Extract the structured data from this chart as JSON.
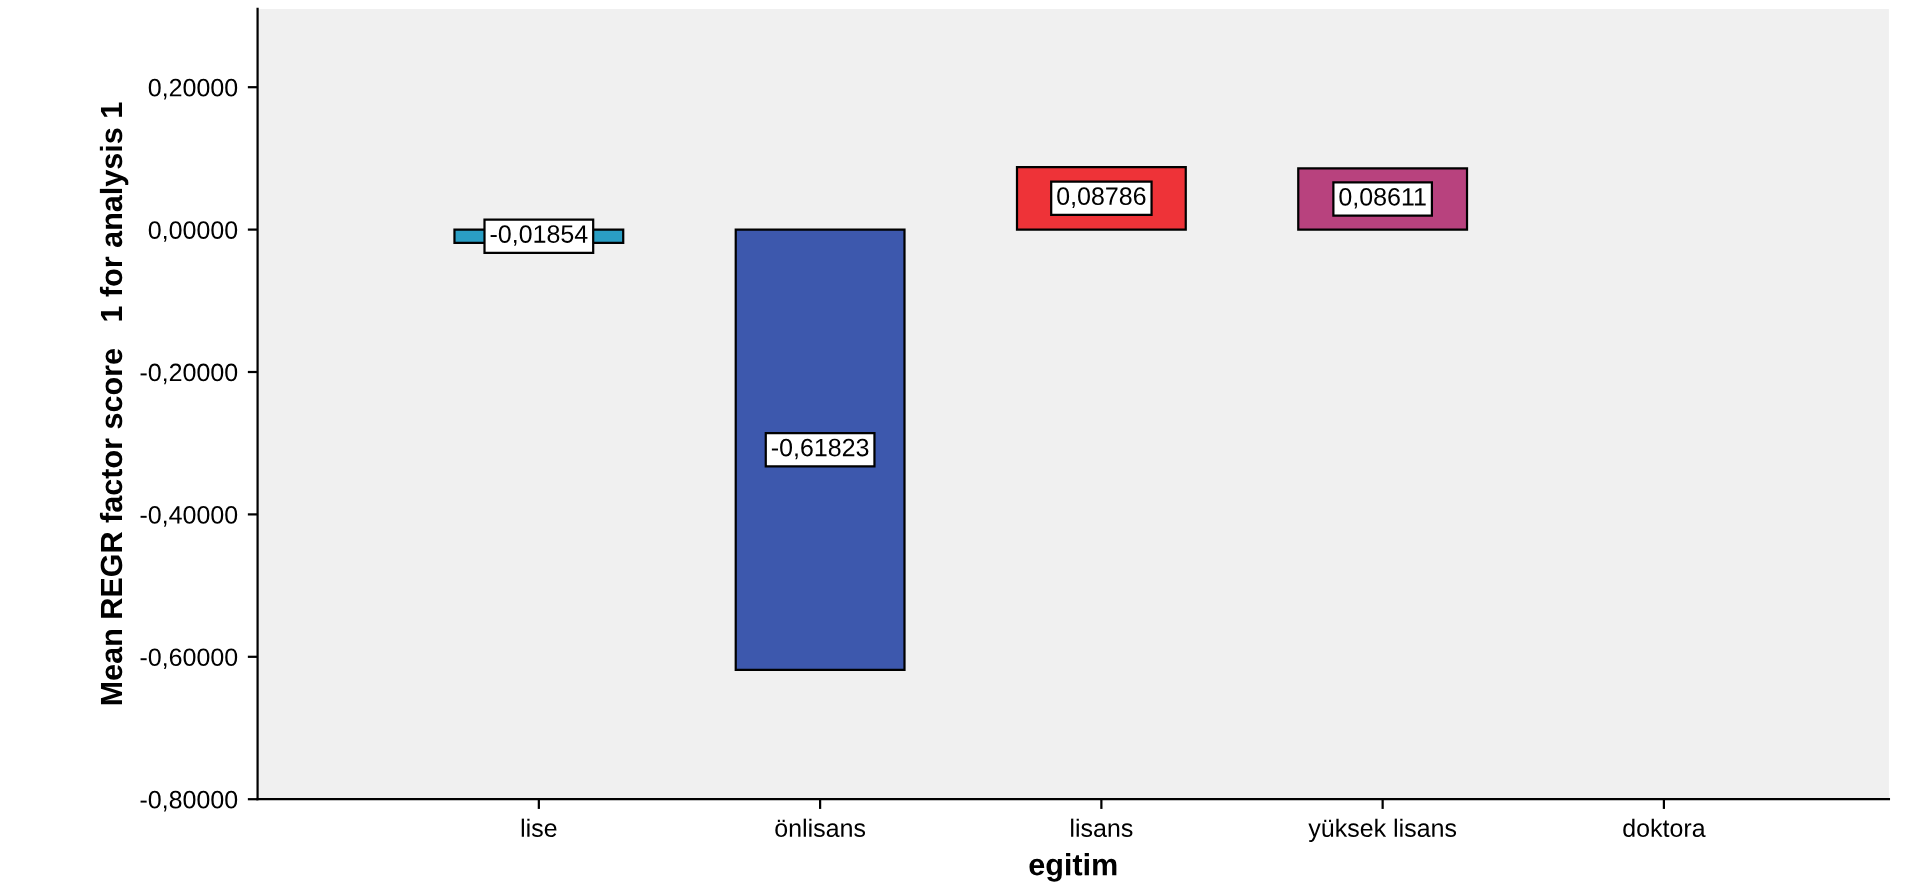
{
  "chart_data": {
    "type": "bar",
    "xlabel": "egitim",
    "ylabel": "Mean REGR factor score   1 for analysis 1",
    "categories": [
      "lise",
      "önlisans",
      "lisans",
      "yüksek lisans",
      "doktora"
    ],
    "values": [
      -0.01854,
      -0.61823,
      0.08786,
      0.08611,
      null
    ],
    "colors": [
      "#2a9ec4",
      "#3d58ad",
      "#ee3338",
      "#b8427e",
      "#888888"
    ],
    "value_labels": [
      "-0,01854",
      "-0,61823",
      "0,08786",
      "0,08611",
      null
    ],
    "ylim": [
      -0.8,
      0.31
    ],
    "yticks": [
      {
        "value": -0.8,
        "label": "-0,80000"
      },
      {
        "value": -0.6,
        "label": "-0,60000"
      },
      {
        "value": -0.4,
        "label": "-0,40000"
      },
      {
        "value": -0.2,
        "label": "-0,20000"
      },
      {
        "value": 0,
        "label": "0,00000"
      },
      {
        "value": 0.2,
        "label": "0,20000"
      }
    ],
    "grid": false,
    "legend": false
  }
}
